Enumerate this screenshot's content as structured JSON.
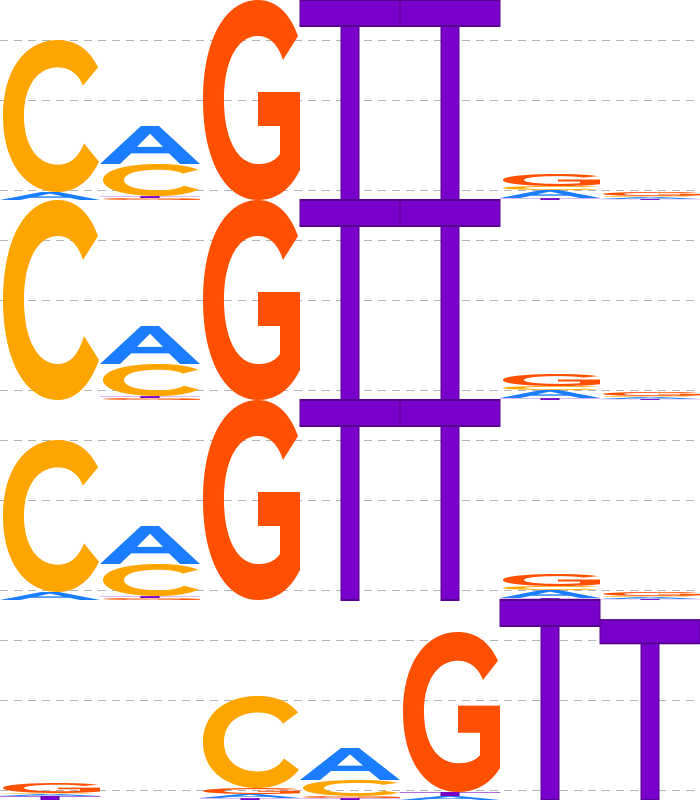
{
  "colors": {
    "A": "#1a7cff",
    "C": "#ffa500",
    "G": "#ff4f00",
    "T": "#7a00cc",
    "gridline": "#b4b4b4",
    "background": "#ffffff"
  },
  "logos": [
    {
      "positions": [
        [
          [
            "A",
            0.04
          ],
          [
            "C",
            0.76
          ]
        ],
        [
          [
            "G",
            0.01
          ],
          [
            "T",
            0.01
          ],
          [
            "C",
            0.16
          ],
          [
            "A",
            0.19
          ]
        ],
        [
          [
            "G",
            1.0
          ]
        ],
        [
          [
            "T",
            1.0
          ]
        ],
        [
          [
            "T",
            1.0
          ]
        ],
        [
          [
            "T",
            0.01
          ],
          [
            "A",
            0.04
          ],
          [
            "C",
            0.02
          ],
          [
            "G",
            0.06
          ]
        ],
        [
          [
            "T",
            0.005
          ],
          [
            "A",
            0.01
          ],
          [
            "C",
            0.005
          ],
          [
            "G",
            0.02
          ]
        ]
      ]
    },
    {
      "positions": [
        [
          [
            "C",
            1.0
          ]
        ],
        [
          [
            "G",
            0.01
          ],
          [
            "T",
            0.01
          ],
          [
            "C",
            0.16
          ],
          [
            "A",
            0.19
          ]
        ],
        [
          [
            "G",
            1.0
          ]
        ],
        [
          [
            "T",
            1.0
          ]
        ],
        [
          [
            "T",
            1.0
          ]
        ],
        [
          [
            "T",
            0.01
          ],
          [
            "A",
            0.04
          ],
          [
            "C",
            0.02
          ],
          [
            "G",
            0.06
          ]
        ],
        [
          [
            "T",
            0.005
          ],
          [
            "A",
            0.01
          ],
          [
            "C",
            0.005
          ],
          [
            "G",
            0.02
          ]
        ]
      ]
    },
    {
      "positions": [
        [
          [
            "A",
            0.04
          ],
          [
            "C",
            0.76
          ]
        ],
        [
          [
            "G",
            0.01
          ],
          [
            "T",
            0.01
          ],
          [
            "C",
            0.16
          ],
          [
            "A",
            0.19
          ]
        ],
        [
          [
            "G",
            1.0
          ]
        ],
        [
          [
            "T",
            1.0
          ]
        ],
        [
          [
            "T",
            1.0
          ]
        ],
        [
          [
            "T",
            0.01
          ],
          [
            "A",
            0.04
          ],
          [
            "C",
            0.02
          ],
          [
            "G",
            0.06
          ]
        ],
        [
          [
            "T",
            0.005
          ],
          [
            "A",
            0.01
          ],
          [
            "C",
            0.005
          ],
          [
            "G",
            0.02
          ]
        ]
      ]
    },
    {
      "positions": [
        [
          [
            "T",
            0.02
          ],
          [
            "A",
            0.01
          ],
          [
            "C",
            0.005
          ],
          [
            "G",
            0.05
          ]
        ],
        [],
        [
          [
            "T",
            0.01
          ],
          [
            "A",
            0.02
          ],
          [
            "G",
            0.03
          ],
          [
            "C",
            0.46
          ]
        ],
        [
          [
            "T",
            0.01
          ],
          [
            "G",
            0.01
          ],
          [
            "C",
            0.08
          ],
          [
            "A",
            0.16
          ]
        ],
        [
          [
            "A",
            0.02
          ],
          [
            "T",
            0.02
          ],
          [
            "G",
            0.8
          ]
        ],
        [
          [
            "T",
            1.0
          ]
        ],
        [
          [
            "T",
            0.9
          ]
        ]
      ]
    }
  ]
}
